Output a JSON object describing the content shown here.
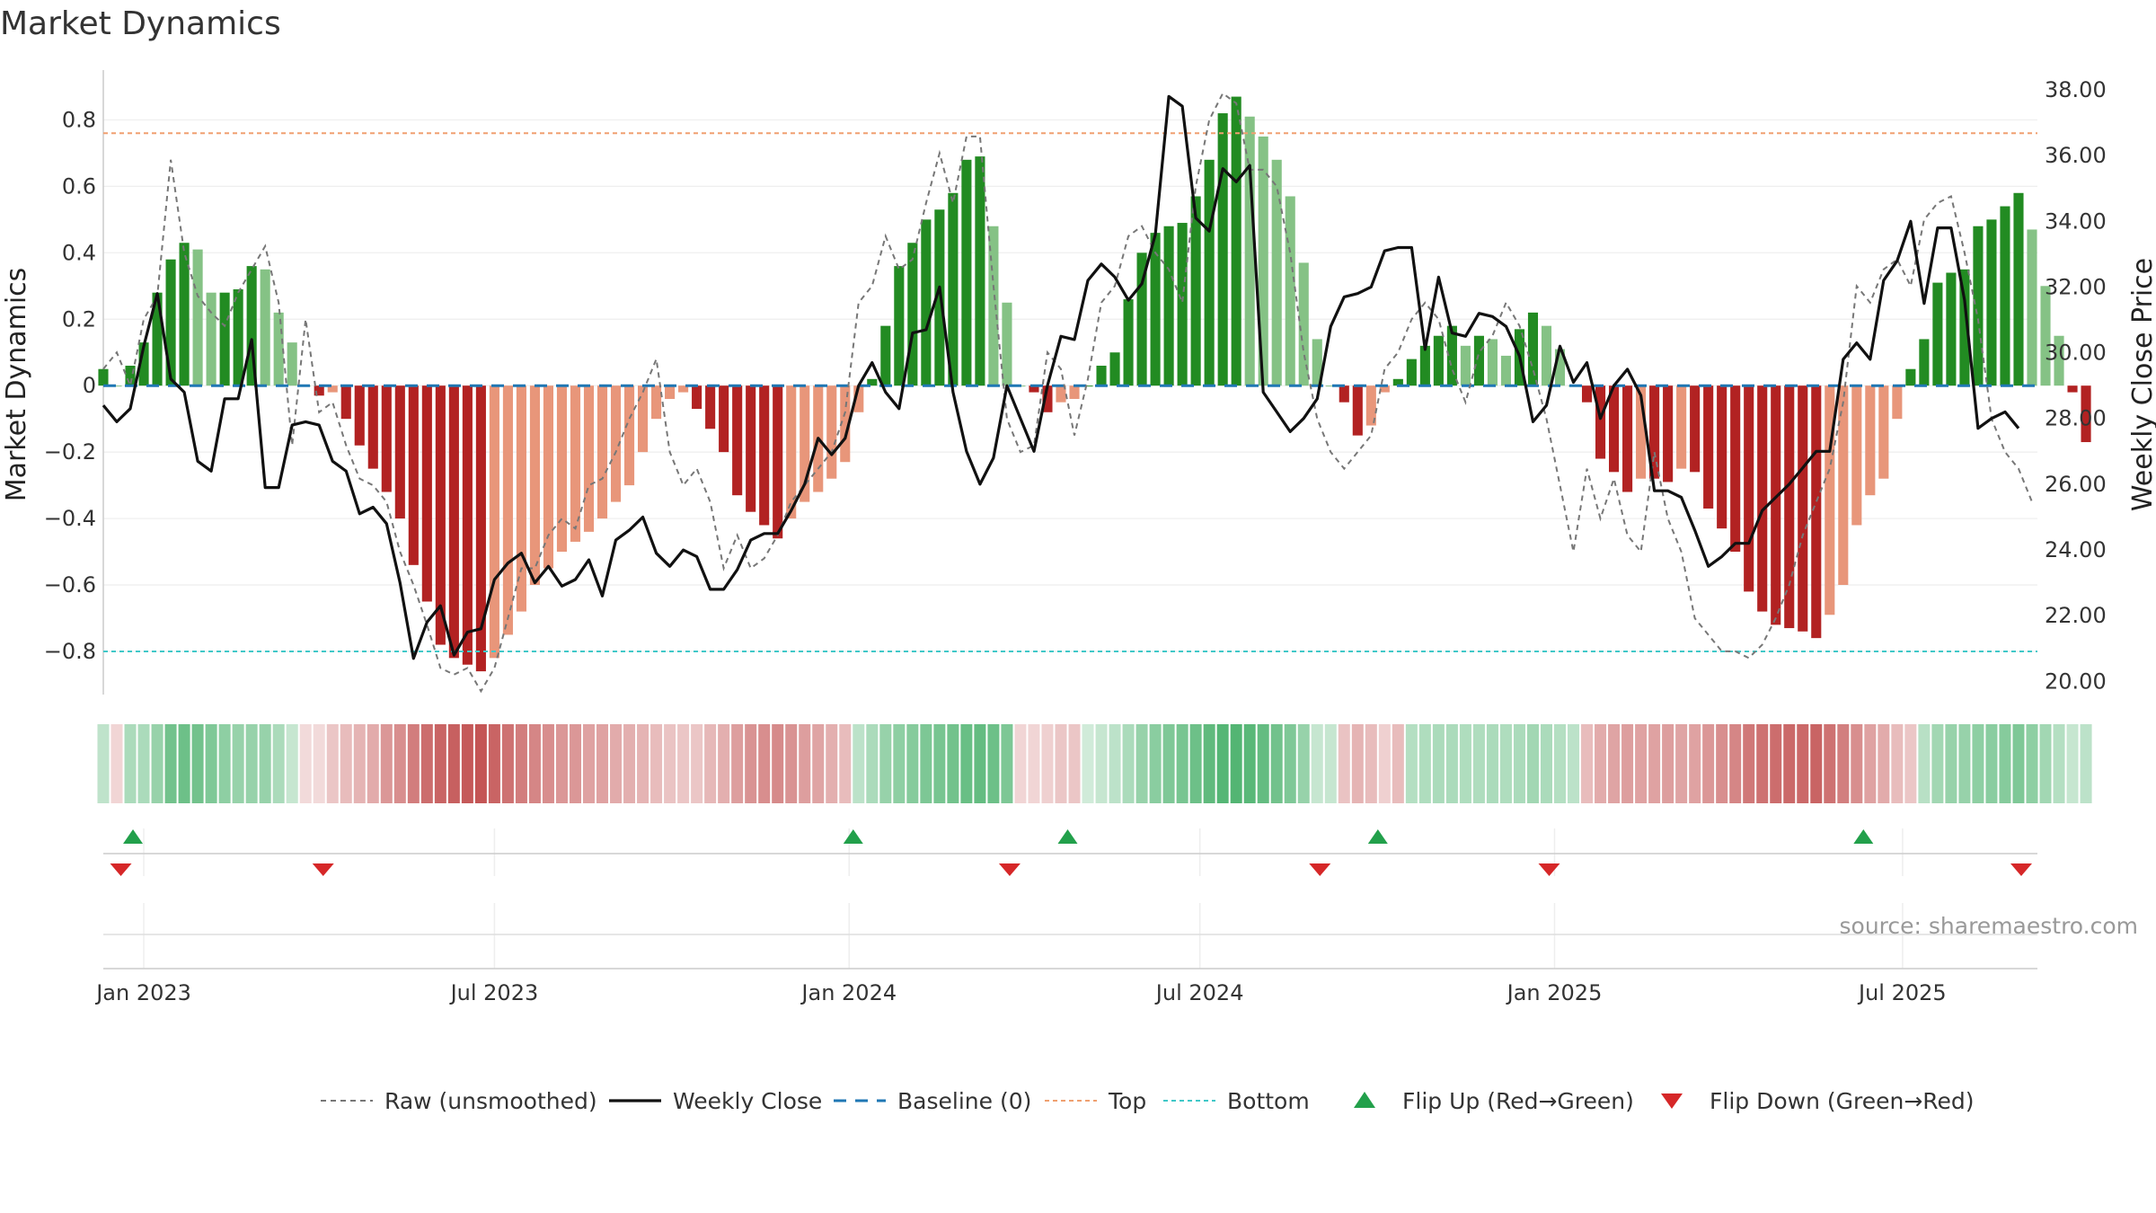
{
  "chart_data": {
    "type": "bar",
    "title": "Market Dynamics",
    "source_text": "source: sharemaestro.com",
    "ylabel_left": "Market Dynamics",
    "ylabel_right": "Weekly Close Price",
    "ylim_left": [
      -0.93,
      0.95
    ],
    "ylim_right": [
      19.6,
      38.6
    ],
    "yticks_left": [
      {
        "v": 0.8,
        "label": "0.8"
      },
      {
        "v": 0.6,
        "label": "0.6"
      },
      {
        "v": 0.4,
        "label": "0.4"
      },
      {
        "v": 0.2,
        "label": "0.2"
      },
      {
        "v": 0,
        "label": "0"
      },
      {
        "v": -0.2,
        "label": "−0.2"
      },
      {
        "v": -0.4,
        "label": "−0.4"
      },
      {
        "v": -0.6,
        "label": "−0.6"
      },
      {
        "v": -0.8,
        "label": "−0.8"
      }
    ],
    "yticks_right": [
      {
        "v": 38,
        "label": "38.00"
      },
      {
        "v": 36,
        "label": "36.00"
      },
      {
        "v": 34,
        "label": "34.00"
      },
      {
        "v": 32,
        "label": "32.00"
      },
      {
        "v": 30,
        "label": "30.00"
      },
      {
        "v": 28,
        "label": "28.00"
      },
      {
        "v": 26,
        "label": "26.00"
      },
      {
        "v": 24,
        "label": "24.00"
      },
      {
        "v": 22,
        "label": "22.00"
      },
      {
        "v": 20,
        "label": "20.00"
      }
    ],
    "xticks": [
      {
        "label": "Jan 2023",
        "week": 3
      },
      {
        "label": "Jul 2023",
        "week": 29
      },
      {
        "label": "Jan 2024",
        "week": 55.3
      },
      {
        "label": "Jul 2024",
        "week": 81.3
      },
      {
        "label": "Jan 2025",
        "week": 107.6
      },
      {
        "label": "Jul 2025",
        "week": 133.4
      }
    ],
    "week_range": [
      0,
      143.4
    ],
    "thresholds": {
      "top": 0.76,
      "bottom": -0.8,
      "baseline": 0
    },
    "colors": {
      "strong_up": "#228b22",
      "weak_up": "#85c285",
      "strong_down": "#b22222",
      "weak_down": "#e8967a",
      "close_line": "#111111",
      "raw_line": "#777777",
      "top_line": "#f0a070",
      "bottom_line": "#40c8c8",
      "baseline": "#1f77b4",
      "flip_up": "#22a04b",
      "flip_down": "#d62728"
    },
    "series": [
      {
        "name": "Market Dynamics (smoothed)",
        "kind": "bars",
        "values": [
          0.05,
          0.0,
          0.06,
          0.13,
          0.28,
          0.38,
          0.43,
          0.41,
          0.28,
          0.28,
          0.29,
          0.36,
          0.35,
          0.22,
          0.13,
          0.0,
          -0.03,
          -0.02,
          -0.1,
          -0.18,
          -0.25,
          -0.32,
          -0.4,
          -0.54,
          -0.65,
          -0.78,
          -0.82,
          -0.84,
          -0.86,
          -0.82,
          -0.75,
          -0.68,
          -0.6,
          -0.55,
          -0.5,
          -0.47,
          -0.44,
          -0.4,
          -0.35,
          -0.3,
          -0.2,
          -0.1,
          -0.04,
          -0.02,
          -0.07,
          -0.13,
          -0.2,
          -0.33,
          -0.38,
          -0.42,
          -0.46,
          -0.4,
          -0.35,
          -0.32,
          -0.28,
          -0.23,
          -0.08,
          0.02,
          0.18,
          0.36,
          0.43,
          0.5,
          0.53,
          0.58,
          0.68,
          0.69,
          0.48,
          0.25,
          0.0,
          -0.02,
          -0.08,
          -0.05,
          -0.04,
          0.0,
          0.06,
          0.1,
          0.26,
          0.4,
          0.46,
          0.48,
          0.49,
          0.57,
          0.68,
          0.82,
          0.87,
          0.81,
          0.75,
          0.68,
          0.57,
          0.37,
          0.14,
          0.0,
          -0.05,
          -0.15,
          -0.12,
          -0.02,
          0.02,
          0.08,
          0.12,
          0.15,
          0.18,
          0.12,
          0.15,
          0.14,
          0.09,
          0.17,
          0.22,
          0.18,
          0.11,
          0.0,
          -0.05,
          -0.22,
          -0.26,
          -0.32,
          -0.28,
          -0.28,
          -0.29,
          -0.25,
          -0.26,
          -0.37,
          -0.43,
          -0.5,
          -0.62,
          -0.68,
          -0.72,
          -0.73,
          -0.74,
          -0.76,
          -0.69,
          -0.6,
          -0.42,
          -0.33,
          -0.28,
          -0.1,
          0.05,
          0.14,
          0.31,
          0.34,
          0.35,
          0.48,
          0.5,
          0.54,
          0.58,
          0.47,
          0.3,
          0.15,
          -0.02,
          -0.17
        ]
      },
      {
        "name": "Raw (unsmoothed)",
        "kind": "dashed-line",
        "values": [
          0.05,
          0.1,
          0.0,
          0.2,
          0.27,
          0.68,
          0.4,
          0.27,
          0.22,
          0.18,
          0.28,
          0.35,
          0.42,
          0.25,
          -0.18,
          0.2,
          -0.08,
          -0.05,
          -0.18,
          -0.28,
          -0.3,
          -0.35,
          -0.5,
          -0.6,
          -0.72,
          -0.85,
          -0.87,
          -0.85,
          -0.92,
          -0.85,
          -0.7,
          -0.55,
          -0.55,
          -0.45,
          -0.4,
          -0.43,
          -0.3,
          -0.28,
          -0.2,
          -0.1,
          -0.02,
          0.08,
          -0.2,
          -0.3,
          -0.25,
          -0.35,
          -0.55,
          -0.45,
          -0.55,
          -0.52,
          -0.45,
          -0.35,
          -0.3,
          -0.25,
          -0.2,
          -0.08,
          0.25,
          0.3,
          0.45,
          0.35,
          0.38,
          0.55,
          0.7,
          0.55,
          0.75,
          0.75,
          0.3,
          -0.1,
          -0.2,
          -0.18,
          0.1,
          0.05,
          -0.15,
          0.02,
          0.25,
          0.3,
          0.45,
          0.48,
          0.4,
          0.35,
          0.25,
          0.6,
          0.8,
          0.88,
          0.85,
          0.65,
          0.65,
          0.6,
          0.4,
          0.1,
          -0.1,
          -0.2,
          -0.25,
          -0.2,
          -0.15,
          0.05,
          0.1,
          0.2,
          0.25,
          0.2,
          0.05,
          -0.05,
          0.1,
          0.15,
          0.25,
          0.18,
          0.05,
          -0.1,
          -0.3,
          -0.5,
          -0.25,
          -0.4,
          -0.28,
          -0.45,
          -0.5,
          -0.2,
          -0.4,
          -0.5,
          -0.7,
          -0.75,
          -0.8,
          -0.8,
          -0.82,
          -0.78,
          -0.7,
          -0.6,
          -0.45,
          -0.35,
          -0.25,
          -0.05,
          0.3,
          0.25,
          0.35,
          0.38,
          0.3,
          0.5,
          0.55,
          0.57,
          0.4,
          0.2,
          -0.1,
          -0.2,
          -0.25,
          -0.35
        ]
      },
      {
        "name": "Weekly Close",
        "kind": "line",
        "axis": "right",
        "values": [
          28.4,
          27.9,
          28.3,
          30.2,
          31.8,
          29.2,
          28.8,
          26.7,
          26.4,
          28.6,
          28.6,
          30.4,
          25.9,
          25.9,
          27.8,
          27.9,
          27.8,
          26.7,
          26.4,
          25.1,
          25.3,
          24.8,
          23.0,
          20.7,
          21.8,
          22.3,
          20.8,
          21.5,
          21.6,
          23.1,
          23.6,
          23.9,
          23.0,
          23.5,
          22.9,
          23.1,
          23.7,
          22.6,
          24.3,
          24.6,
          25.0,
          23.9,
          23.5,
          24.0,
          23.8,
          22.8,
          22.8,
          23.4,
          24.3,
          24.5,
          24.5,
          25.2,
          26.0,
          27.4,
          26.9,
          27.4,
          29.0,
          29.7,
          28.8,
          28.3,
          30.6,
          30.7,
          32.0,
          28.8,
          27.0,
          26.0,
          26.8,
          29.0,
          28.0,
          27.0,
          29.0,
          30.5,
          30.4,
          32.2,
          32.7,
          32.3,
          31.6,
          32.1,
          33.6,
          37.8,
          37.5,
          34.1,
          33.7,
          35.6,
          35.2,
          35.7,
          28.8,
          28.2,
          27.6,
          28.0,
          28.6,
          30.8,
          31.7,
          31.8,
          32.0,
          33.1,
          33.2,
          33.2,
          30.1,
          32.3,
          30.6,
          30.5,
          31.2,
          31.1,
          30.8,
          29.9,
          27.9,
          28.4,
          30.2,
          29.1,
          29.7,
          28.0,
          29.0,
          29.5,
          28.7,
          25.8,
          25.8,
          25.6,
          24.6,
          23.5,
          23.8,
          24.2,
          24.2,
          25.2,
          25.6,
          26.0,
          26.5,
          27.0,
          27.0,
          29.8,
          30.3,
          29.8,
          32.2,
          32.8,
          34.0,
          31.5,
          33.8,
          33.8,
          31.6,
          27.7,
          28.0,
          28.2,
          27.7
        ]
      }
    ],
    "regime_strip": [
      0.34,
      0.22,
      0.45,
      0.45,
      0.55,
      0.75,
      0.78,
      0.75,
      0.68,
      0.6,
      0.55,
      0.55,
      0.55,
      0.45,
      0.3,
      0.2,
      0.2,
      0.3,
      0.35,
      0.4,
      0.45,
      0.55,
      0.6,
      0.7,
      0.78,
      0.82,
      0.85,
      0.88,
      0.9,
      0.82,
      0.75,
      0.7,
      0.65,
      0.6,
      0.55,
      0.55,
      0.5,
      0.5,
      0.45,
      0.42,
      0.4,
      0.35,
      0.32,
      0.3,
      0.3,
      0.38,
      0.42,
      0.52,
      0.58,
      0.6,
      0.62,
      0.58,
      0.52,
      0.48,
      0.42,
      0.35,
      0.35,
      0.45,
      0.55,
      0.6,
      0.65,
      0.7,
      0.72,
      0.75,
      0.8,
      0.82,
      0.78,
      0.7,
      0.22,
      0.22,
      0.25,
      0.3,
      0.3,
      0.25,
      0.3,
      0.35,
      0.45,
      0.55,
      0.62,
      0.68,
      0.72,
      0.78,
      0.85,
      0.9,
      0.92,
      0.88,
      0.82,
      0.75,
      0.68,
      0.55,
      0.3,
      0.3,
      0.32,
      0.4,
      0.35,
      0.25,
      0.35,
      0.4,
      0.42,
      0.45,
      0.45,
      0.42,
      0.42,
      0.45,
      0.42,
      0.45,
      0.5,
      0.45,
      0.4,
      0.35,
      0.35,
      0.45,
      0.48,
      0.52,
      0.5,
      0.5,
      0.52,
      0.48,
      0.5,
      0.55,
      0.6,
      0.65,
      0.72,
      0.75,
      0.78,
      0.8,
      0.8,
      0.82,
      0.75,
      0.68,
      0.6,
      0.5,
      0.45,
      0.35,
      0.3,
      0.38,
      0.5,
      0.55,
      0.55,
      0.6,
      0.62,
      0.65,
      0.68,
      0.6,
      0.5,
      0.4,
      0.3,
      0.35
    ],
    "regime_sign": [
      1,
      -1,
      1,
      1,
      1,
      1,
      1,
      1,
      1,
      1,
      1,
      1,
      1,
      1,
      1,
      -1,
      -1,
      -1,
      -1,
      -1,
      -1,
      -1,
      -1,
      -1,
      -1,
      -1,
      -1,
      -1,
      -1,
      -1,
      -1,
      -1,
      -1,
      -1,
      -1,
      -1,
      -1,
      -1,
      -1,
      -1,
      -1,
      -1,
      -1,
      -1,
      -1,
      -1,
      -1,
      -1,
      -1,
      -1,
      -1,
      -1,
      -1,
      -1,
      -1,
      -1,
      1,
      1,
      1,
      1,
      1,
      1,
      1,
      1,
      1,
      1,
      1,
      1,
      -1,
      -1,
      -1,
      -1,
      -1,
      1,
      1,
      1,
      1,
      1,
      1,
      1,
      1,
      1,
      1,
      1,
      1,
      1,
      1,
      1,
      1,
      1,
      1,
      1,
      -1,
      -1,
      -1,
      -1,
      -1,
      1,
      1,
      1,
      1,
      1,
      1,
      1,
      1,
      1,
      1,
      1,
      1,
      1,
      -1,
      -1,
      -1,
      -1,
      -1,
      -1,
      -1,
      -1,
      -1,
      -1,
      -1,
      -1,
      -1,
      -1,
      -1,
      -1,
      -1,
      -1,
      -1,
      -1,
      -1,
      -1,
      -1,
      -1,
      -1,
      1,
      1,
      1,
      1,
      1,
      1,
      1,
      1,
      1,
      1,
      1,
      1,
      1,
      -1,
      -1
    ],
    "flip_up_weeks": [
      2.2,
      55.6,
      71.5,
      94.5,
      130.5
    ],
    "flip_down_weeks": [
      1.3,
      16.3,
      67.2,
      90.2,
      107.2,
      142.2
    ],
    "legend": [
      {
        "label": "Raw (unsmoothed)",
        "style": "raw"
      },
      {
        "label": "Weekly Close",
        "style": "close"
      },
      {
        "label": "Baseline (0)",
        "style": "baseline"
      },
      {
        "label": "Top",
        "style": "top"
      },
      {
        "label": "Bottom",
        "style": "bottom"
      },
      {
        "label": "Flip Up (Red→Green)",
        "style": "flipup"
      },
      {
        "label": "Flip Down (Green→Red)",
        "style": "flipdown"
      }
    ]
  }
}
